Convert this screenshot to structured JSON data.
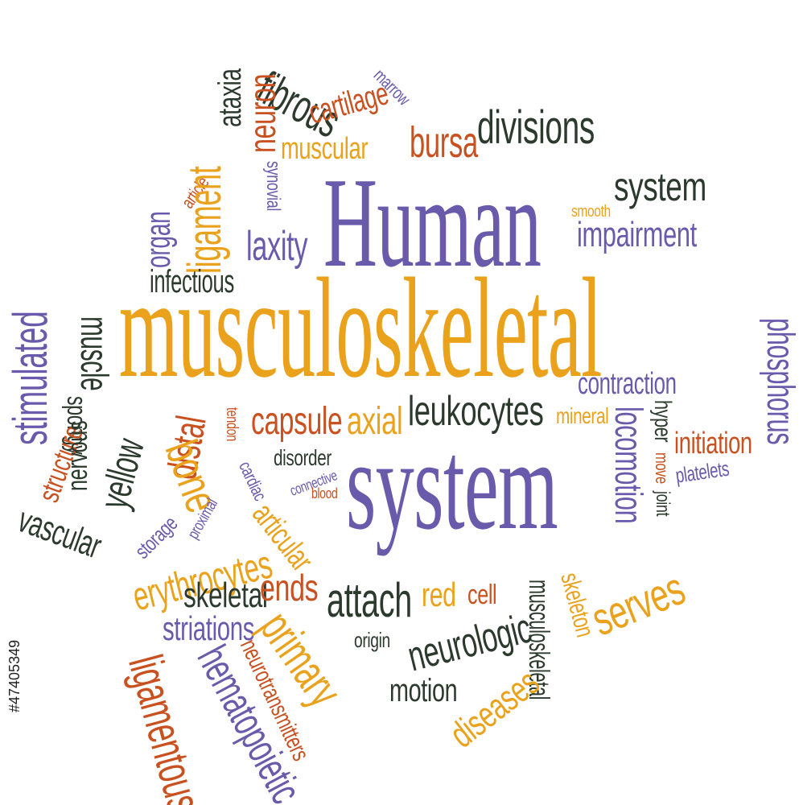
{
  "colors": {
    "purple": "#6a5aab",
    "orange": "#eaa21c",
    "darkgreen": "#2c3a2e",
    "rust": "#c9501f"
  },
  "stock_id": "#47405349",
  "words": [
    {
      "text": "Human",
      "color": "purple"
    },
    {
      "text": "musculoskeletal",
      "color": "orange"
    },
    {
      "text": "system",
      "color": "purple"
    },
    {
      "text": "fibrous",
      "color": "darkgreen"
    },
    {
      "text": "marrow",
      "color": "purple"
    },
    {
      "text": "ataxia",
      "color": "darkgreen"
    },
    {
      "text": "neuron",
      "color": "rust"
    },
    {
      "text": "cartilage",
      "color": "rust"
    },
    {
      "text": "muscular",
      "color": "orange"
    },
    {
      "text": "bursa",
      "color": "rust"
    },
    {
      "text": "divisions",
      "color": "darkgreen"
    },
    {
      "text": "article",
      "color": "rust"
    },
    {
      "text": "ligament",
      "color": "orange"
    },
    {
      "text": "synovial",
      "color": "purple"
    },
    {
      "text": "organ",
      "color": "purple"
    },
    {
      "text": "laxity",
      "color": "purple"
    },
    {
      "text": "infectious",
      "color": "darkgreen"
    },
    {
      "text": "system",
      "color": "darkgreen"
    },
    {
      "text": "smooth",
      "color": "orange"
    },
    {
      "text": "impairment",
      "color": "purple"
    },
    {
      "text": "stimulated",
      "color": "purple"
    },
    {
      "text": "muscle",
      "color": "darkgreen"
    },
    {
      "text": "spongy",
      "color": "darkgreen"
    },
    {
      "text": "structure",
      "color": "rust"
    },
    {
      "text": "nervous",
      "color": "darkgreen"
    },
    {
      "text": "yellow",
      "color": "darkgreen"
    },
    {
      "text": "phosphorus",
      "color": "purple"
    },
    {
      "text": "contraction",
      "color": "purple"
    },
    {
      "text": "hyper",
      "color": "darkgreen"
    },
    {
      "text": "initiation",
      "color": "rust"
    },
    {
      "text": "mineral",
      "color": "orange"
    },
    {
      "text": "tendon",
      "color": "rust"
    },
    {
      "text": "capsule",
      "color": "rust"
    },
    {
      "text": "axial",
      "color": "orange"
    },
    {
      "text": "leukocytes",
      "color": "darkgreen"
    },
    {
      "text": "distal",
      "color": "rust"
    },
    {
      "text": "bone",
      "color": "orange"
    },
    {
      "text": "locomotion",
      "color": "purple"
    },
    {
      "text": "move",
      "color": "rust"
    },
    {
      "text": "platelets",
      "color": "purple"
    },
    {
      "text": "joint",
      "color": "darkgreen"
    },
    {
      "text": "disorder",
      "color": "darkgreen"
    },
    {
      "text": "connective",
      "color": "purple"
    },
    {
      "text": "blood",
      "color": "rust"
    },
    {
      "text": "proximal",
      "color": "purple"
    },
    {
      "text": "cardiac",
      "color": "purple"
    },
    {
      "text": "storage",
      "color": "purple"
    },
    {
      "text": "vascular",
      "color": "darkgreen"
    },
    {
      "text": "articular",
      "color": "orange"
    },
    {
      "text": "erythrocytes",
      "color": "orange"
    },
    {
      "text": "skeletal",
      "color": "darkgreen"
    },
    {
      "text": "ends",
      "color": "rust"
    },
    {
      "text": "attach",
      "color": "darkgreen"
    },
    {
      "text": "red",
      "color": "orange"
    },
    {
      "text": "cell",
      "color": "rust"
    },
    {
      "text": "musculoskeletal",
      "color": "darkgreen"
    },
    {
      "text": "skeleton",
      "color": "orange"
    },
    {
      "text": "serves",
      "color": "orange"
    },
    {
      "text": "striations",
      "color": "purple"
    },
    {
      "text": "primary",
      "color": "orange"
    },
    {
      "text": "origin",
      "color": "darkgreen"
    },
    {
      "text": "neurologic",
      "color": "darkgreen"
    },
    {
      "text": "neurotransmitters",
      "color": "rust"
    },
    {
      "text": "ligamentous",
      "color": "rust"
    },
    {
      "text": "hematopoietic",
      "color": "purple"
    },
    {
      "text": "motion",
      "color": "darkgreen"
    },
    {
      "text": "diseases",
      "color": "orange"
    }
  ]
}
